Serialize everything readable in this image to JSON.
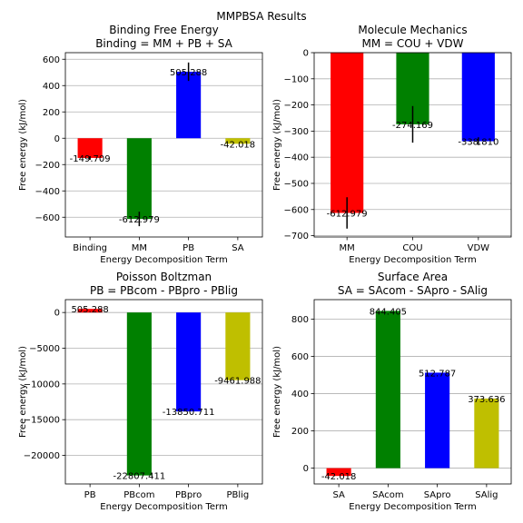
{
  "figure_title": "MMPBSA Results",
  "chart_data": [
    {
      "type": "bar",
      "title": "Binding Free Energy\nBinding = MM + PB + SA",
      "xlabel": "Energy Decomposition Term",
      "ylabel": "Free energy (kJ/mol)",
      "ylim": [
        -750,
        650
      ],
      "yticks": [
        -600,
        -400,
        -200,
        0,
        200,
        400,
        600
      ],
      "grid": "y",
      "categories": [
        "Binding",
        "MM",
        "PB",
        "SA"
      ],
      "values": [
        -149.709,
        -612.979,
        505.288,
        -42.018
      ],
      "errors": [
        14,
        55,
        70,
        0
      ],
      "value_labels": [
        "-149.709",
        "-612.979",
        "505.288",
        "-42.018"
      ],
      "colors": [
        "#ff0000",
        "#008000",
        "#0000ff",
        "#bfbf00"
      ]
    },
    {
      "type": "bar",
      "title": "Molecule Mechanics\nMM = COU + VDW",
      "xlabel": "Energy Decomposition Term",
      "ylabel": "Free energy (kJ/mol)",
      "ylim": [
        -705,
        0
      ],
      "yticks": [
        -700,
        -600,
        -500,
        -400,
        -300,
        -200,
        -100,
        0
      ],
      "grid": "y",
      "categories": [
        "MM",
        "COU",
        "VDW"
      ],
      "values": [
        -612.979,
        -274.169,
        -338.81
      ],
      "errors": [
        60,
        70,
        15
      ],
      "value_labels": [
        "-612.979",
        "-274.169",
        "-338.810"
      ],
      "colors": [
        "#ff0000",
        "#008000",
        "#0000ff"
      ]
    },
    {
      "type": "bar",
      "title": "Poisson Boltzman\nPB = PBcom - PBpro - PBlig",
      "xlabel": "Energy Decomposition Term",
      "ylabel": "Free energy (kJ/mol)",
      "ylim": [
        -24000,
        1800
      ],
      "yticks": [
        -20000,
        -15000,
        -10000,
        -5000,
        0
      ],
      "grid": "y",
      "categories": [
        "PB",
        "PBcom",
        "PBpro",
        "PBlig"
      ],
      "values": [
        505.288,
        -22807.411,
        -13850.711,
        -9461.988
      ],
      "errors": [
        0,
        0,
        0,
        0
      ],
      "value_labels": [
        "505.288",
        "-22807.411",
        "-13850.711",
        "-9461.988"
      ],
      "colors": [
        "#ff0000",
        "#008000",
        "#0000ff",
        "#bfbf00"
      ]
    },
    {
      "type": "bar",
      "title": "Surface Area\nSA = SAcom - SApro - SAlig",
      "xlabel": "Energy Decomposition Term",
      "ylabel": "Free energy (kJ/mol)",
      "ylim": [
        -85,
        905
      ],
      "yticks": [
        0,
        200,
        400,
        600,
        800
      ],
      "grid": "y",
      "categories": [
        "SA",
        "SAcom",
        "SApro",
        "SAlig"
      ],
      "values": [
        -42.018,
        844.405,
        512.787,
        373.636
      ],
      "errors": [
        0,
        0,
        0,
        0
      ],
      "value_labels": [
        "-42.018",
        "844.405",
        "512.787",
        "373.636"
      ],
      "colors": [
        "#ff0000",
        "#008000",
        "#0000ff",
        "#bfbf00"
      ]
    }
  ]
}
